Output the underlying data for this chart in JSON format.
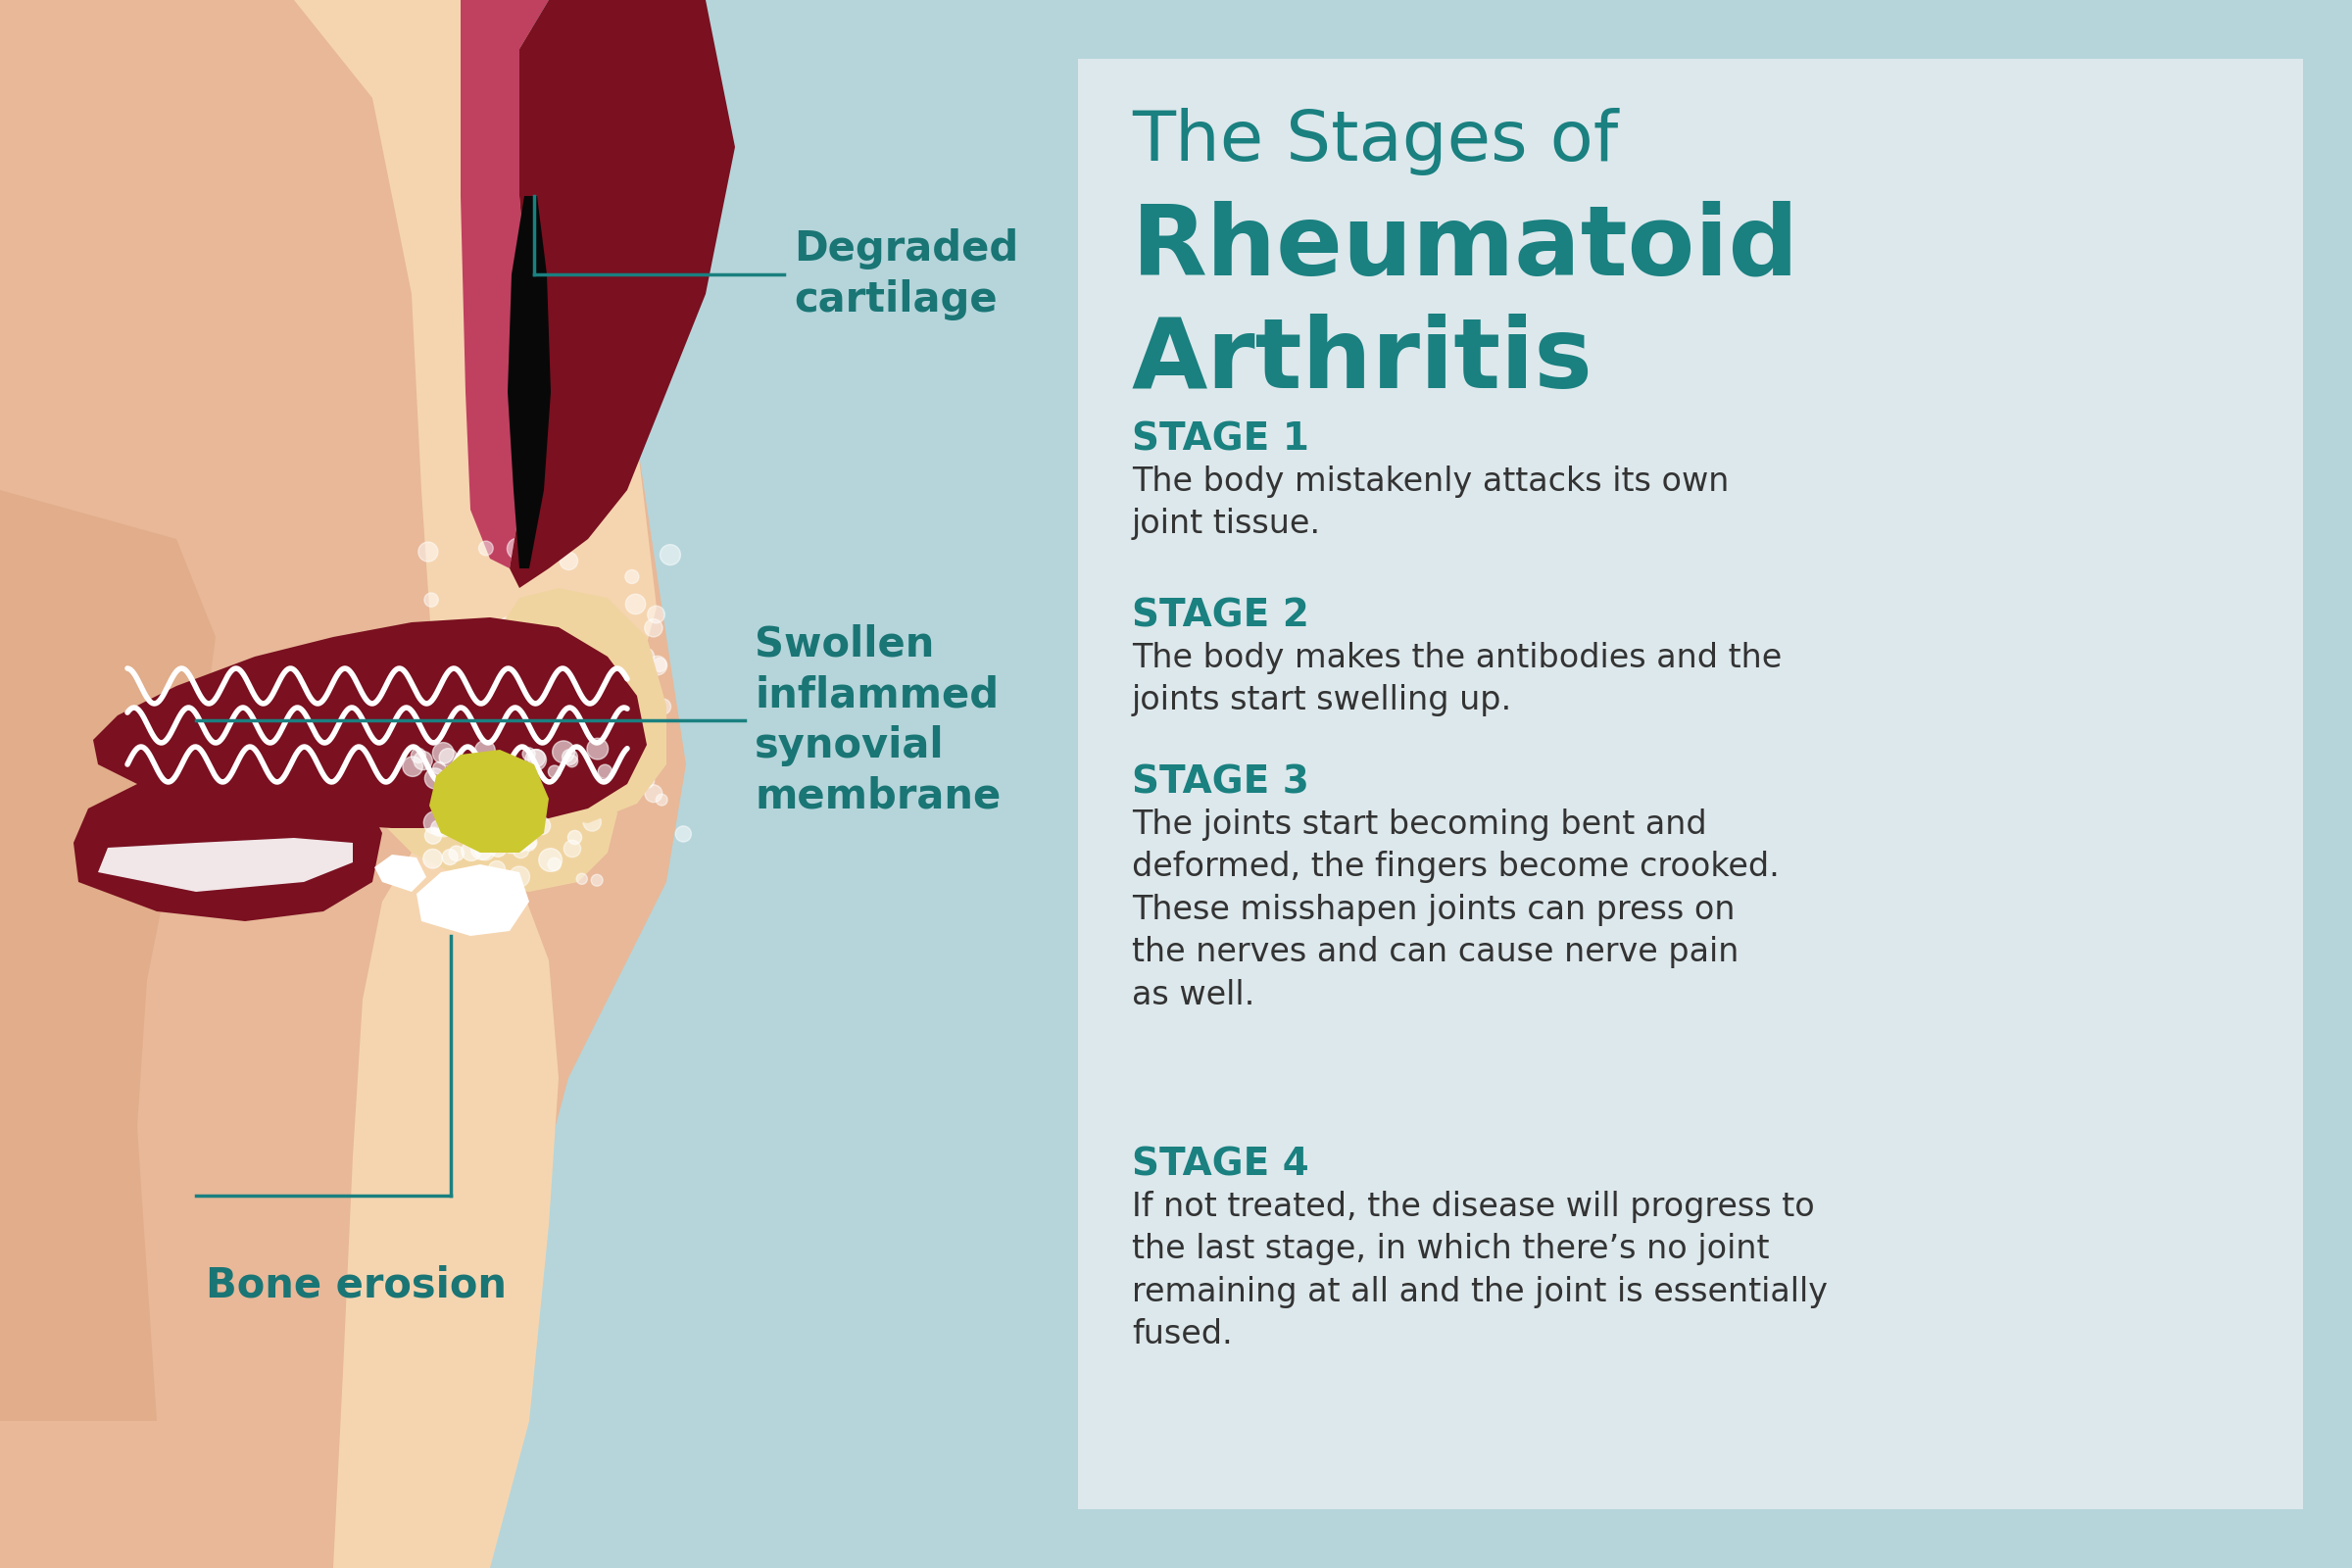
{
  "background_color": "#b5d5da",
  "panel_color": "#dde8ec",
  "title_line1": "The Stages of",
  "title_line2": "Rheumatoid",
  "title_line3": "Arthritis",
  "title_color": "#1a8080",
  "stage_label_color": "#1a8080",
  "stage_text_color": "#333333",
  "annotation_color": "#1a8080",
  "annotation_text_color": "#1a7575",
  "stages": [
    {
      "label": "STAGE 1",
      "text": "The body mistakenly attacks its own\njoint tissue."
    },
    {
      "label": "STAGE 2",
      "text": "The body makes the antibodies and the\njoints start swelling up."
    },
    {
      "label": "STAGE 3",
      "text": "The joints start becoming bent and\ndeformed, the fingers become crooked.\nThese misshapen joints can press on\nthe nerves and can cause nerve pain\nas well."
    },
    {
      "label": "STAGE 4",
      "text": "If not treated, the disease will progress to\nthe last stage, in which there’s no joint\nremaining at all and the joint is essentially\nfused."
    }
  ],
  "skin_peach": "#e8b898",
  "skin_light": "#f5d5b0",
  "skin_dark": "#d4956a",
  "dark_red": "#7a1020",
  "mid_red": "#9a1828",
  "bone_beige": "#f0d4a0",
  "black_gap": "#080808",
  "yellow_fluid": "#ccc830",
  "white_col": "#ffffff"
}
